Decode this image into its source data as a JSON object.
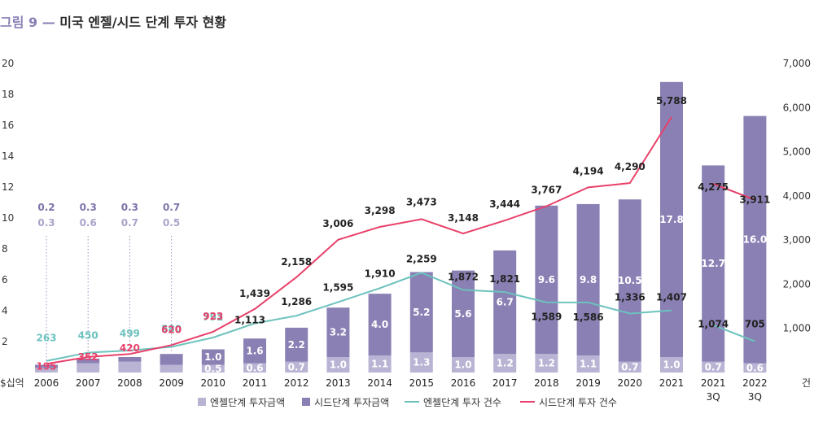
{
  "title": {
    "figure": "그림 9 —",
    "text": "미국 엔젤/시드 단계 투자 현황"
  },
  "chart_data": {
    "type": "bar",
    "stacked": true,
    "left_axis": {
      "label": "$십억",
      "min": 0,
      "max": 20,
      "ticks": [
        "20",
        "18",
        "16",
        "14",
        "12",
        "10",
        "8",
        "6",
        "4",
        "2"
      ]
    },
    "right_axis": {
      "label": "건",
      "min": 0,
      "max": 7000,
      "ticks": [
        "7,000",
        "6,000",
        "5,000",
        "4,000",
        "3,000",
        "2,000",
        "1,000"
      ]
    },
    "categories": [
      "2006",
      "2007",
      "2008",
      "2009",
      "2010",
      "2011",
      "2012",
      "2013",
      "2014",
      "2015",
      "2016",
      "2017",
      "2018",
      "2019",
      "2020",
      "2021",
      "2021\n3Q",
      "2022\n3Q"
    ],
    "series": [
      {
        "name": "엔젤단계 투자금액",
        "axis": "left",
        "color": "#b9b3d4",
        "values": [
          0.3,
          0.6,
          0.7,
          0.5,
          0.5,
          0.6,
          0.7,
          1.0,
          1.1,
          1.3,
          1.0,
          1.2,
          1.2,
          1.1,
          0.7,
          1.0,
          0.7,
          0.6
        ],
        "labels": [
          "0.3",
          "0.6",
          "0.7",
          "0.5",
          "0.5",
          "0.6",
          "0.7",
          "1.0",
          "1.1",
          "1.3",
          "1.0",
          "1.2",
          "1.2",
          "1.1",
          "0.7",
          "1.0",
          "0.7",
          "0.6"
        ]
      },
      {
        "name": "시드단계 투자금액",
        "axis": "left",
        "color": "#8a80b4",
        "values": [
          0.2,
          0.3,
          0.3,
          0.7,
          1.0,
          1.6,
          2.2,
          3.2,
          4.0,
          5.2,
          5.6,
          6.7,
          9.6,
          9.8,
          10.5,
          17.8,
          12.7,
          16.0
        ],
        "labels": [
          "0.2",
          "0.3",
          "0.3",
          "0.7",
          "1.0",
          "1.6",
          "2.2",
          "3.2",
          "4.0",
          "5.2",
          "5.6",
          "6.7",
          "9.6",
          "9.8",
          "10.5",
          "17.8",
          "12.7",
          "16.0"
        ]
      },
      {
        "name": "엔젤단계 투자 건수",
        "axis": "right",
        "type": "line",
        "color": "#6cc2bd",
        "values": [
          263,
          450,
          499,
          580,
          792,
          1113,
          1286,
          1595,
          1910,
          2259,
          1872,
          1821,
          1589,
          1586,
          1336,
          1407,
          1074,
          705
        ],
        "labels": [
          "263",
          "450",
          "499",
          "580",
          "792",
          "1,113",
          "1,286",
          "1,595",
          "1,910",
          "2,259",
          "1,872",
          "1,821",
          "1,589",
          "1,586",
          "1,336",
          "1,407",
          "1,074",
          "705"
        ]
      },
      {
        "name": "시드단계 투자 건수",
        "axis": "right",
        "type": "line",
        "color": "#e8416b",
        "values": [
          195,
          352,
          420,
          620,
          923,
          1439,
          2158,
          3006,
          3298,
          3473,
          3148,
          3444,
          3767,
          4194,
          4290,
          5788,
          4275,
          3911
        ],
        "labels": [
          "195",
          "352",
          "420",
          "620",
          "923",
          "1,439",
          "2,158",
          "3,006",
          "3,298",
          "3,473",
          "3,148",
          "3,444",
          "3,767",
          "4,194",
          "4,290",
          "5,788",
          "4,275",
          "3,911"
        ]
      }
    ]
  }
}
